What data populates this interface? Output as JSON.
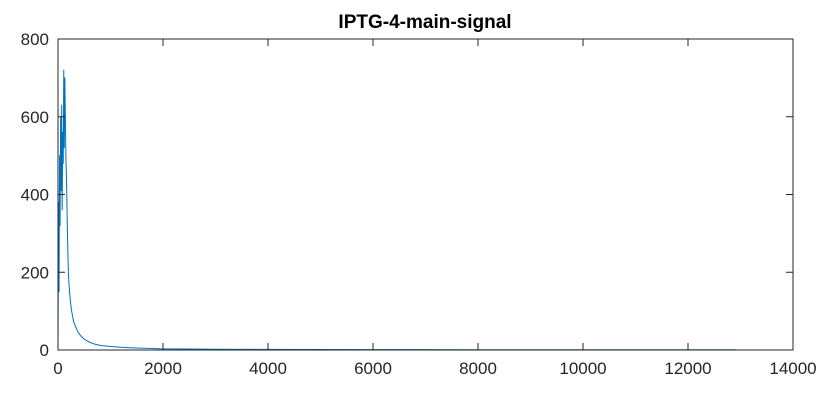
{
  "chart_data": {
    "type": "line",
    "title": "IPTG-4-main-signal",
    "xlabel": "",
    "ylabel": "",
    "xlim": [
      0,
      14000
    ],
    "ylim": [
      0,
      800
    ],
    "xticks": [
      0,
      2000,
      4000,
      6000,
      8000,
      10000,
      12000,
      14000
    ],
    "xtick_labels": [
      "0",
      "2000",
      "4000",
      "6000",
      "8000",
      "10000",
      "12000",
      "14000"
    ],
    "yticks": [
      0,
      200,
      400,
      600,
      800
    ],
    "ytick_labels": [
      "0",
      "200",
      "400",
      "600",
      "800"
    ],
    "grid": false,
    "box": true,
    "series": [
      {
        "color": "#0072BD",
        "x": [
          0,
          10,
          20,
          30,
          40,
          50,
          60,
          70,
          80,
          90,
          100,
          110,
          120,
          130,
          140,
          150,
          160,
          170,
          180,
          190,
          200,
          220,
          240,
          260,
          280,
          300,
          350,
          400,
          450,
          500,
          600,
          700,
          800,
          1000,
          1200,
          1500,
          2000,
          2500,
          3000,
          4000,
          5000,
          6000,
          7000,
          8000,
          9000,
          10000,
          11000,
          12000,
          12900
        ],
        "y": [
          0,
          380,
          150,
          500,
          320,
          600,
          410,
          630,
          360,
          560,
          480,
          720,
          520,
          700,
          600,
          500,
          450,
          380,
          300,
          240,
          190,
          150,
          120,
          100,
          85,
          72,
          55,
          42,
          34,
          28,
          20,
          15,
          12,
          9,
          7,
          5,
          3,
          2.5,
          2,
          1.5,
          1.2,
          1,
          1,
          0.8,
          0.8,
          0.7,
          0.7,
          0.6,
          0.5
        ]
      }
    ]
  }
}
